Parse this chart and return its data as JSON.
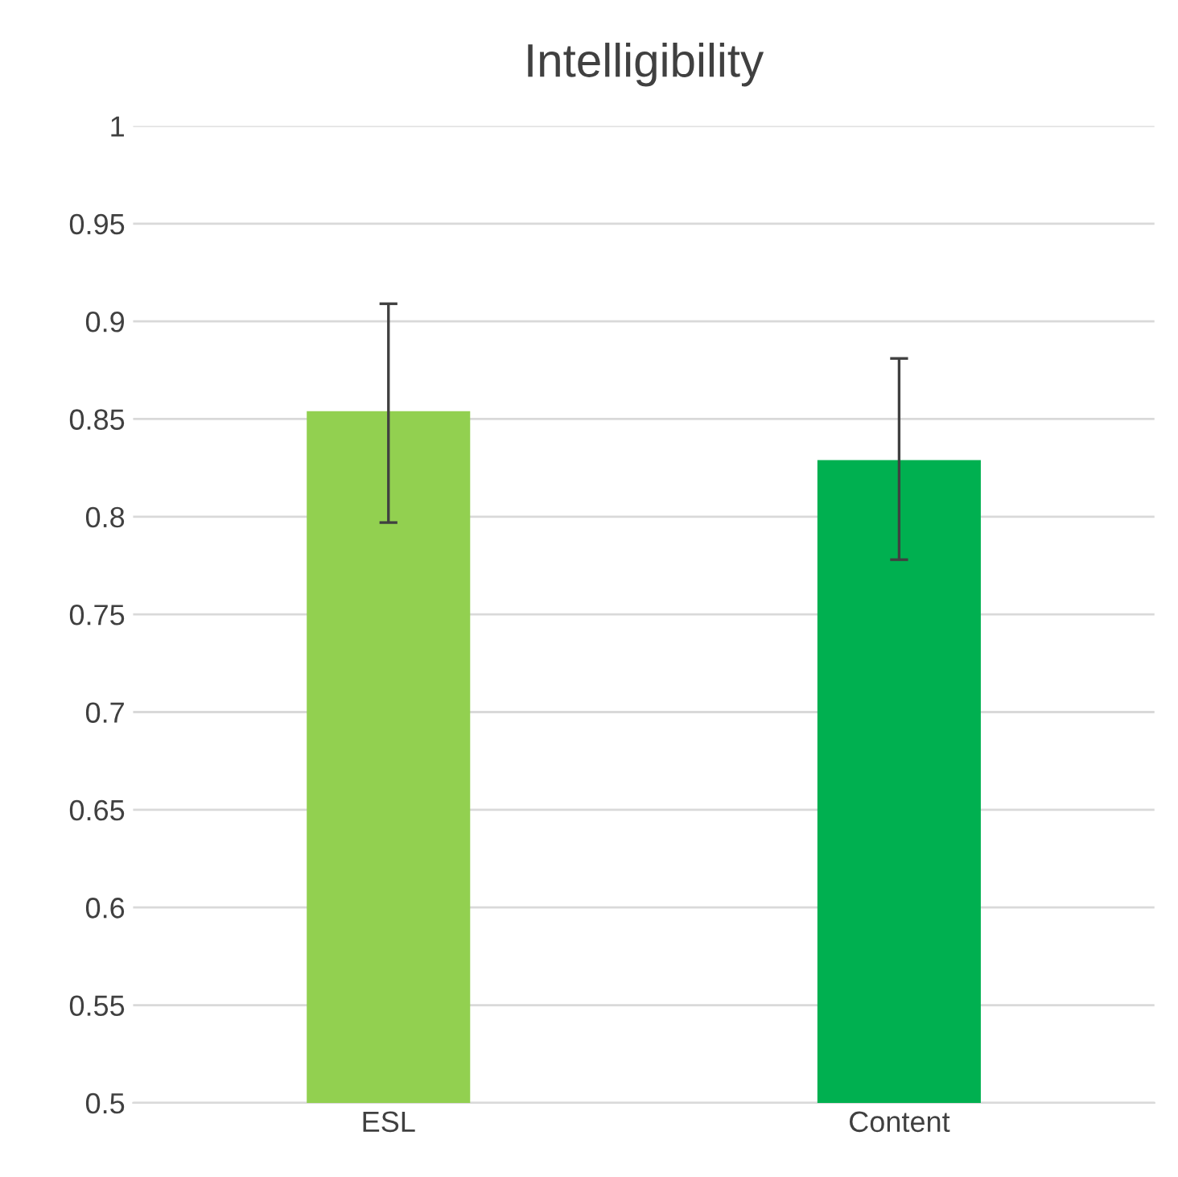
{
  "chart_data": {
    "type": "bar",
    "title": "Intelligibility",
    "categories": [
      "ESL",
      "Content"
    ],
    "values": [
      0.854,
      0.829
    ],
    "colors": [
      "#92d050",
      "#00b050"
    ],
    "errors": [
      [
        0.797,
        0.909
      ],
      [
        0.778,
        0.881
      ]
    ],
    "ylim": [
      0.5,
      1
    ],
    "yticks": [
      0.5,
      0.55,
      0.6,
      0.65,
      0.7,
      0.75,
      0.8,
      0.85,
      0.9,
      0.95,
      1
    ],
    "grid": "y",
    "legend": false
  }
}
